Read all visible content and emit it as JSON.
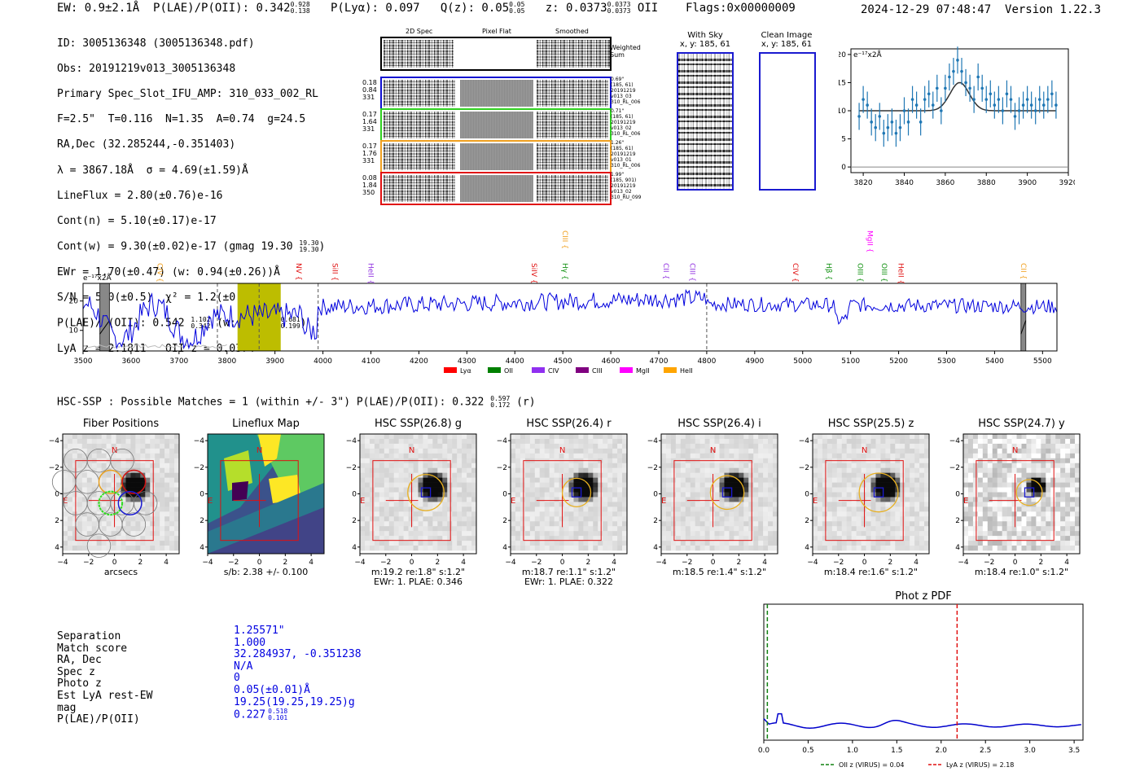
{
  "header": {
    "ew": "EW: 0.9±2.1Å",
    "plae_label": "P(LAE)/P(OII): 0.342",
    "plae_hi": "0.928",
    "plae_lo": "0.138",
    "plya": "P(Lyα): 0.097",
    "qz_label": "Q(z): 0.05",
    "qz_hi": "0.05",
    "qz_lo": "0.05",
    "z_label": "z: 0.0373",
    "z_hi": "0.0373",
    "z_lo": "0.0373",
    "z_line": "OII",
    "flags": "Flags:0x00000009",
    "datetime": "2024-12-29 07:48:47",
    "version": "Version 1.22.3"
  },
  "info": {
    "id": "ID: 3005136348 (3005136348.pdf)",
    "obs": "Obs: 20191219v013_3005136348",
    "primary": "Primary Spec_Slot_IFU_AMP: 310_033_002_RL",
    "fit": "F=2.5\"  T=0.116  N=1.35  A=0.74  g=24.5",
    "radec": "RA,Dec (32.285244,-0.351403)",
    "lambda": "λ = 3867.18Å  σ = 4.69(±1.59)Å",
    "lineflux": "LineFlux = 2.80(±0.76)e-16",
    "contn": "Cont(n) = 5.10(±0.17)e-17",
    "contw_label": "Cont(w) = 9.30(±0.02)e-17 (gmag 19.30",
    "contw_hi": "19.30",
    "contw_lo": "19.30",
    "ewr": "EWr = 1.70(±0.47) (w: 0.94(±0.26))Å",
    "sn": "S/N = 5.0(±0.5)  χ² = 1.2(±0.2)",
    "plae_label": "P(LAE)/P(OII): 0.542",
    "plae_hi": "1.102",
    "plae_lo": "0.342",
    "plae_w": "(w: 0.349",
    "plae_w_hi": "0.681",
    "plae_w_lo": "0.199",
    "lyaz": "LyA z = 2.1811   OII z = 0.0374"
  },
  "cutouts": {
    "col_2d": "2D Spec",
    "col_flat": "Pixel Flat",
    "col_smooth": "Smoothed",
    "weighted": "Weighted\nSum",
    "rows": [
      {
        "left": "0.18\n0.84\n331",
        "right": "0.69\"\n(185, 61)\n20191219\nv013_03\n310_RL_006",
        "color": "#1010d0"
      },
      {
        "left": "0.17\n1.64\n331",
        "right": "0.71\"\n(185, 61)\n20191219\nv013_02\n310_RL_006",
        "color": "#30d020"
      },
      {
        "left": "0.17\n1.76\n331",
        "right": "1.26\"\n(185, 61)\n20191219\nv013_01\n310_RL_006",
        "color": "#f0a020"
      },
      {
        "left": "0.08\n1.84\n350",
        "right": "1.99\"\n(185, 901)\n20191219\nv013_02\n310_RU_099",
        "color": "#e01010"
      }
    ],
    "withsky_title": "With Sky",
    "withsky_xy": "x, y: 185, 61",
    "clean_title": "Clean Image",
    "clean_xy": "x, y: 185, 61"
  },
  "fit_chart": {
    "type": "scatter",
    "ylabel": "e⁻¹⁷x2Å",
    "xlim": [
      3814,
      3920
    ],
    "ylim": [
      -1,
      21
    ],
    "xticks": [
      "3820",
      "3840",
      "3860",
      "3880",
      "3900",
      "3920"
    ],
    "yticks": [
      "0",
      "5",
      "10",
      "15",
      "20"
    ],
    "x": [
      3818,
      3820,
      3822,
      3824,
      3826,
      3828,
      3830,
      3832,
      3834,
      3836,
      3838,
      3840,
      3842,
      3844,
      3846,
      3848,
      3850,
      3852,
      3854,
      3856,
      3858,
      3860,
      3862,
      3864,
      3866,
      3868,
      3870,
      3872,
      3874,
      3876,
      3878,
      3880,
      3882,
      3884,
      3886,
      3888,
      3890,
      3892,
      3894,
      3896,
      3898,
      3900,
      3902,
      3904,
      3906,
      3908,
      3910,
      3912,
      3914
    ],
    "y": [
      9,
      12,
      11,
      8,
      7,
      9,
      6,
      7,
      8,
      6,
      7,
      10,
      8,
      12,
      11,
      8,
      12,
      13,
      11,
      14,
      10,
      14,
      16,
      17,
      19,
      17,
      15,
      14,
      12,
      16,
      14,
      12,
      13,
      11,
      12,
      10,
      13,
      12,
      9,
      10,
      11,
      12,
      11,
      10,
      12,
      11,
      12,
      13,
      11
    ],
    "err": 2.4,
    "model_baseline": 10,
    "model_peak": 5,
    "model_center": 3867,
    "model_sigma": 4.7
  },
  "spectrum_chart": {
    "type": "line",
    "ylabel": "e⁻¹⁷x2Å",
    "xlim": [
      3500,
      5530
    ],
    "ylim": [
      3,
      26
    ],
    "xticks": [
      "3500",
      "3600",
      "3700",
      "3800",
      "3900",
      "4000",
      "4100",
      "4200",
      "4300",
      "4400",
      "4500",
      "4600",
      "4700",
      "4800",
      "4900",
      "5000",
      "5100",
      "5200",
      "5300",
      "5400",
      "5500"
    ],
    "yticks": [
      "10",
      "20"
    ],
    "highlight": [
      3822,
      3912
    ],
    "dashed_lines": [
      3780,
      3867,
      3990,
      4800
    ],
    "gray_bands": [
      [
        3535,
        3555
      ],
      [
        5455,
        5465
      ]
    ],
    "lines": [
      {
        "name": "CIV",
        "x": 3655,
        "color": "#f0a020",
        "row": 0
      },
      {
        "name": "NV",
        "x": 3945,
        "color": "#e01010",
        "row": 0
      },
      {
        "name": "SiII",
        "x": 4020,
        "color": "#e01010",
        "row": 0
      },
      {
        "name": "HeII",
        "x": 4095,
        "color": "#9030e0",
        "row": 0
      },
      {
        "name": "SiIV",
        "x": 4435,
        "color": "#e01010",
        "row": 0
      },
      {
        "name": "CIII",
        "x": 4500,
        "color": "#f0a020",
        "row": 1
      },
      {
        "name": "Hγ",
        "x": 4500,
        "color": "#109010",
        "row": 0
      },
      {
        "name": "CII",
        "x": 4710,
        "color": "#9030e0",
        "row": 0
      },
      {
        "name": "CIII",
        "x": 4765,
        "color": "#9030e0",
        "row": 0
      },
      {
        "name": "CIV",
        "x": 4980,
        "color": "#e01010",
        "row": 0
      },
      {
        "name": "Hβ",
        "x": 5050,
        "color": "#109010",
        "row": 0
      },
      {
        "name": "MgII",
        "x": 5135,
        "color": "#ff00ff",
        "row": 1
      },
      {
        "name": "OIII",
        "x": 5115,
        "color": "#109010",
        "row": 0
      },
      {
        "name": "OIII",
        "x": 5165,
        "color": "#109010",
        "row": 0
      },
      {
        "name": "HeII",
        "x": 5200,
        "color": "#e01010",
        "row": 0
      },
      {
        "name": "CII",
        "x": 5455,
        "color": "#f0a020",
        "row": 0
      }
    ],
    "legend": [
      {
        "name": "Lyα",
        "color": "#ff0000"
      },
      {
        "name": "OII",
        "color": "#008000"
      },
      {
        "name": "CIV",
        "color": "#9030f0"
      },
      {
        "name": "CIII",
        "color": "#800080"
      },
      {
        "name": "MgII",
        "color": "#ff00ff"
      },
      {
        "name": "HeII",
        "color": "#ffa500"
      }
    ]
  },
  "hsc": {
    "title_main": "HSC-SSP : Possible Matches = 1 (within +/- 3\")  P(LAE)/P(OII): 0.322",
    "title_hi": "0.597",
    "title_lo": "0.172",
    "title_tail": "(r)",
    "ticks": [
      "−4",
      "−2",
      "0",
      "2",
      "4"
    ],
    "panels": [
      {
        "title": "Fiber Positions",
        "cap1": "arcsecs",
        "cap2": ""
      },
      {
        "title": "Lineflux Map",
        "cap1": "s/b: 2.38 +/- 0.100",
        "cap2": ""
      },
      {
        "title": "HSC SSP(26.8) g",
        "cap1": "m:19.2  re:1.8\"  s:1.2\"",
        "cap2": "EWr: 1. PLAE: 0.346"
      },
      {
        "title": "HSC SSP(26.4) r",
        "cap1": "m:18.7  re:1.1\"  s:1.2\"",
        "cap2": "EWr: 1. PLAE: 0.322"
      },
      {
        "title": "HSC SSP(26.4) i",
        "cap1": "m:18.5  re:1.4\"  s:1.2\"",
        "cap2": ""
      },
      {
        "title": "HSC SSP(25.5) z",
        "cap1": "m:18.4  re:1.6\"  s:1.2\"",
        "cap2": ""
      },
      {
        "title": "HSC SSP(24.7) y",
        "cap1": "m:18.4  re:1.0\"  s:1.2\"",
        "cap2": ""
      }
    ],
    "n_label": "N",
    "e_label": "E"
  },
  "match": {
    "labels": [
      "Separation",
      "Match score",
      "RA, Dec",
      "Spec z",
      "Photo z",
      "Est LyA rest-EW",
      "mag",
      "P(LAE)/P(OII)"
    ],
    "values": [
      "1.25571\"",
      "1.000",
      "32.284937, -0.351238",
      "N/A",
      "0",
      "0.05(±0.01)Å",
      "19.25(19.25,19.25)g",
      "0.227"
    ],
    "plae_hi": "0.518",
    "plae_lo": "0.101"
  },
  "photz_chart": {
    "type": "line",
    "title": "Phot z PDF",
    "xlim": [
      0,
      3.6
    ],
    "xticks": [
      "0.0",
      "0.5",
      "1.0",
      "1.5",
      "2.0",
      "2.5",
      "3.0",
      "3.5"
    ],
    "oii_z": 0.04,
    "lya_z": 2.18,
    "legend_oii": "OII z (VIRUS) = 0.04",
    "legend_lya": "LyA z (VIRUS) = 2.18"
  }
}
